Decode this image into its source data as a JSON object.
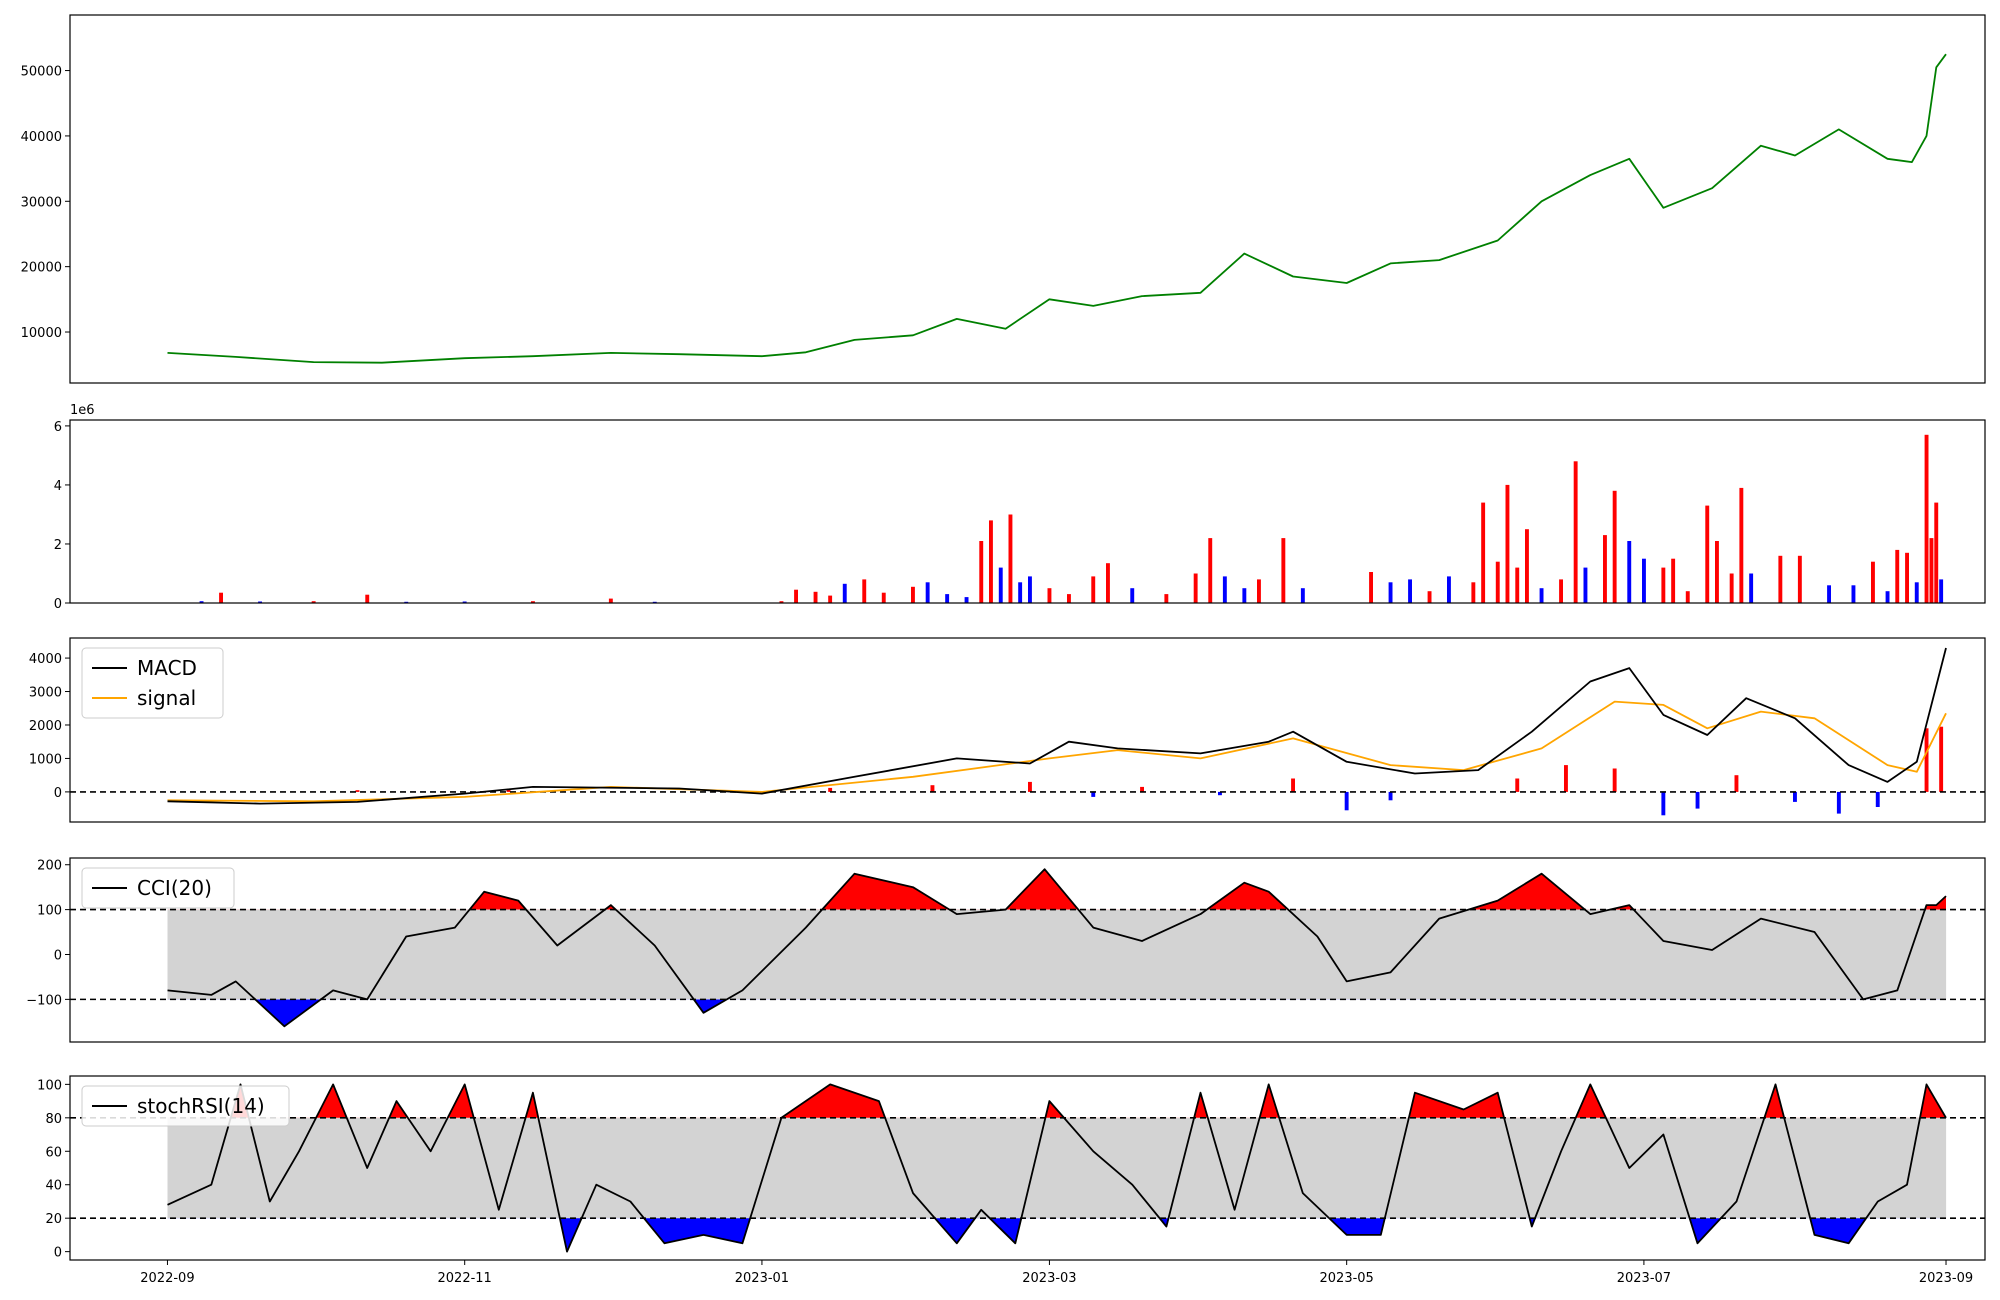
{
  "figure": {
    "x_ticks": [
      "2022-09",
      "2022-11",
      "2023-01",
      "2023-03",
      "2023-05",
      "2023-07",
      "2023-09"
    ],
    "x_range": [
      "2022-08-12",
      "2023-09-09"
    ]
  },
  "chart_data": [
    {
      "type": "line",
      "panel": "price",
      "color": "#008000",
      "ylim": [
        2200,
        58500
      ],
      "yticks": [
        10000,
        20000,
        30000,
        40000,
        50000
      ],
      "x": [
        "2022-09-01",
        "2022-09-15",
        "2022-10-01",
        "2022-10-15",
        "2022-11-01",
        "2022-11-15",
        "2022-12-01",
        "2022-12-15",
        "2023-01-01",
        "2023-01-10",
        "2023-01-20",
        "2023-02-01",
        "2023-02-10",
        "2023-02-20",
        "2023-03-01",
        "2023-03-10",
        "2023-03-20",
        "2023-04-01",
        "2023-04-10",
        "2023-04-20",
        "2023-05-01",
        "2023-05-10",
        "2023-05-20",
        "2023-06-01",
        "2023-06-10",
        "2023-06-20",
        "2023-06-28",
        "2023-07-05",
        "2023-07-15",
        "2023-07-25",
        "2023-08-01",
        "2023-08-10",
        "2023-08-20",
        "2023-08-25",
        "2023-08-28",
        "2023-08-30",
        "2023-09-01"
      ],
      "values": [
        6800,
        6200,
        5400,
        5300,
        6000,
        6300,
        6800,
        6600,
        6300,
        6900,
        8800,
        9500,
        12000,
        10500,
        15000,
        14000,
        15500,
        16000,
        22000,
        18500,
        17500,
        20500,
        21000,
        24000,
        30000,
        34000,
        36500,
        29000,
        32000,
        38500,
        37000,
        41000,
        36500,
        36000,
        40000,
        50500,
        52500
      ]
    },
    {
      "type": "bar",
      "panel": "volume",
      "scale_label": "1e6",
      "ylim": [
        0,
        6200000
      ],
      "yticks": [
        0,
        2,
        4,
        6
      ],
      "colors": {
        "up": "#ff0000",
        "down": "#0000ff"
      },
      "notes": "daily volume; red = up day, blue = down day",
      "bars": [
        [
          "2022-09-08",
          60000,
          "down"
        ],
        [
          "2022-09-12",
          350000,
          "up"
        ],
        [
          "2022-09-20",
          50000,
          "down"
        ],
        [
          "2022-10-01",
          60000,
          "up"
        ],
        [
          "2022-10-12",
          280000,
          "up"
        ],
        [
          "2022-10-20",
          40000,
          "down"
        ],
        [
          "2022-11-01",
          50000,
          "down"
        ],
        [
          "2022-11-15",
          60000,
          "up"
        ],
        [
          "2022-12-01",
          150000,
          "up"
        ],
        [
          "2022-12-10",
          40000,
          "down"
        ],
        [
          "2023-01-05",
          60000,
          "up"
        ],
        [
          "2023-01-08",
          450000,
          "up"
        ],
        [
          "2023-01-12",
          380000,
          "up"
        ],
        [
          "2023-01-15",
          250000,
          "up"
        ],
        [
          "2023-01-18",
          650000,
          "down"
        ],
        [
          "2023-01-22",
          800000,
          "up"
        ],
        [
          "2023-01-26",
          350000,
          "up"
        ],
        [
          "2023-02-01",
          550000,
          "up"
        ],
        [
          "2023-02-04",
          700000,
          "down"
        ],
        [
          "2023-02-08",
          300000,
          "down"
        ],
        [
          "2023-02-12",
          200000,
          "down"
        ],
        [
          "2023-02-15",
          2100000,
          "up"
        ],
        [
          "2023-02-17",
          2800000,
          "up"
        ],
        [
          "2023-02-19",
          1200000,
          "down"
        ],
        [
          "2023-02-21",
          3000000,
          "up"
        ],
        [
          "2023-02-23",
          700000,
          "down"
        ],
        [
          "2023-02-25",
          900000,
          "down"
        ],
        [
          "2023-03-01",
          500000,
          "up"
        ],
        [
          "2023-03-05",
          300000,
          "up"
        ],
        [
          "2023-03-10",
          900000,
          "up"
        ],
        [
          "2023-03-13",
          1350000,
          "up"
        ],
        [
          "2023-03-18",
          500000,
          "down"
        ],
        [
          "2023-03-25",
          300000,
          "up"
        ],
        [
          "2023-03-31",
          1000000,
          "up"
        ],
        [
          "2023-04-03",
          2200000,
          "up"
        ],
        [
          "2023-04-06",
          900000,
          "down"
        ],
        [
          "2023-04-10",
          500000,
          "down"
        ],
        [
          "2023-04-13",
          800000,
          "up"
        ],
        [
          "2023-04-18",
          2200000,
          "up"
        ],
        [
          "2023-04-22",
          500000,
          "down"
        ],
        [
          "2023-05-06",
          1050000,
          "up"
        ],
        [
          "2023-05-10",
          700000,
          "down"
        ],
        [
          "2023-05-14",
          800000,
          "down"
        ],
        [
          "2023-05-18",
          400000,
          "up"
        ],
        [
          "2023-05-22",
          900000,
          "down"
        ],
        [
          "2023-05-27",
          700000,
          "up"
        ],
        [
          "2023-05-29",
          3400000,
          "up"
        ],
        [
          "2023-06-01",
          1400000,
          "up"
        ],
        [
          "2023-06-03",
          4000000,
          "up"
        ],
        [
          "2023-06-05",
          1200000,
          "up"
        ],
        [
          "2023-06-07",
          2500000,
          "up"
        ],
        [
          "2023-06-10",
          500000,
          "down"
        ],
        [
          "2023-06-14",
          800000,
          "up"
        ],
        [
          "2023-06-17",
          4800000,
          "up"
        ],
        [
          "2023-06-19",
          1200000,
          "down"
        ],
        [
          "2023-06-23",
          2300000,
          "up"
        ],
        [
          "2023-06-25",
          3800000,
          "up"
        ],
        [
          "2023-06-28",
          2100000,
          "down"
        ],
        [
          "2023-07-01",
          1500000,
          "down"
        ],
        [
          "2023-07-05",
          1200000,
          "up"
        ],
        [
          "2023-07-07",
          1500000,
          "up"
        ],
        [
          "2023-07-10",
          400000,
          "up"
        ],
        [
          "2023-07-14",
          3300000,
          "up"
        ],
        [
          "2023-07-16",
          2100000,
          "up"
        ],
        [
          "2023-07-19",
          1000000,
          "up"
        ],
        [
          "2023-07-21",
          3900000,
          "up"
        ],
        [
          "2023-07-23",
          1000000,
          "down"
        ],
        [
          "2023-07-29",
          1600000,
          "up"
        ],
        [
          "2023-08-02",
          1600000,
          "up"
        ],
        [
          "2023-08-08",
          600000,
          "down"
        ],
        [
          "2023-08-13",
          600000,
          "down"
        ],
        [
          "2023-08-17",
          1400000,
          "up"
        ],
        [
          "2023-08-20",
          400000,
          "down"
        ],
        [
          "2023-08-22",
          1800000,
          "up"
        ],
        [
          "2023-08-24",
          1700000,
          "up"
        ],
        [
          "2023-08-26",
          700000,
          "down"
        ],
        [
          "2023-08-28",
          5700000,
          "up"
        ],
        [
          "2023-08-29",
          2200000,
          "up"
        ],
        [
          "2023-08-30",
          3400000,
          "up"
        ],
        [
          "2023-08-31",
          800000,
          "down"
        ]
      ]
    },
    {
      "type": "line",
      "panel": "macd",
      "ylim": [
        -900,
        4600
      ],
      "yticks": [
        0,
        1000,
        2000,
        3000,
        4000
      ],
      "hline": 0,
      "legend": {
        "placement": "top-left",
        "entries": [
          "MACD",
          "signal"
        ]
      },
      "series": [
        {
          "name": "MACD",
          "color": "#000000",
          "x": [
            "2022-09-01",
            "2022-09-20",
            "2022-10-10",
            "2022-11-01",
            "2022-11-15",
            "2022-12-15",
            "2023-01-01",
            "2023-01-20",
            "2023-02-10",
            "2023-02-25",
            "2023-03-05",
            "2023-03-15",
            "2023-04-01",
            "2023-04-15",
            "2023-04-20",
            "2023-05-01",
            "2023-05-15",
            "2023-05-28",
            "2023-06-08",
            "2023-06-20",
            "2023-06-28",
            "2023-07-05",
            "2023-07-14",
            "2023-07-22",
            "2023-08-01",
            "2023-08-12",
            "2023-08-20",
            "2023-08-26",
            "2023-09-01"
          ],
          "values": [
            -280,
            -350,
            -300,
            -50,
            150,
            100,
            -50,
            450,
            1000,
            850,
            1500,
            1300,
            1150,
            1500,
            1800,
            900,
            550,
            650,
            1800,
            3300,
            3700,
            2300,
            1700,
            2800,
            2200,
            800,
            300,
            900,
            4300
          ]
        },
        {
          "name": "signal",
          "color": "#ffa500",
          "x": [
            "2022-09-01",
            "2022-10-01",
            "2022-11-01",
            "2022-12-01",
            "2023-01-01",
            "2023-02-01",
            "2023-03-01",
            "2023-03-15",
            "2023-04-01",
            "2023-04-20",
            "2023-05-10",
            "2023-05-25",
            "2023-06-10",
            "2023-06-25",
            "2023-07-05",
            "2023-07-14",
            "2023-07-25",
            "2023-08-05",
            "2023-08-20",
            "2023-08-26",
            "2023-09-01"
          ],
          "values": [
            -250,
            -280,
            -150,
            150,
            0,
            450,
            1000,
            1250,
            1000,
            1600,
            800,
            650,
            1300,
            2700,
            2600,
            1900,
            2400,
            2200,
            800,
            600,
            2350
          ]
        }
      ],
      "histogram": {
        "colors": {
          "positive": "#ff0000",
          "negative": "#0000ff"
        },
        "x": [
          "2022-10-10",
          "2022-11-10",
          "2023-01-15",
          "2023-02-05",
          "2023-02-25",
          "2023-03-10",
          "2023-03-20",
          "2023-04-05",
          "2023-04-20",
          "2023-05-01",
          "2023-05-10",
          "2023-06-05",
          "2023-06-15",
          "2023-06-25",
          "2023-07-05",
          "2023-07-12",
          "2023-07-20",
          "2023-08-01",
          "2023-08-10",
          "2023-08-18",
          "2023-08-28",
          "2023-08-31"
        ],
        "values": [
          50,
          60,
          120,
          200,
          300,
          -150,
          150,
          -100,
          400,
          -550,
          -250,
          400,
          800,
          700,
          -700,
          -500,
          500,
          -300,
          -650,
          -450,
          1900,
          1950
        ]
      }
    },
    {
      "type": "line",
      "panel": "cci",
      "color": "#000000",
      "ylim": [
        -195,
        215
      ],
      "yticks": [
        -100,
        0,
        100,
        200
      ],
      "hlines": [
        100,
        -100
      ],
      "band": [
        -100,
        100
      ],
      "legend": {
        "placement": "top-left",
        "entries": [
          "CCI(20)"
        ]
      },
      "x": [
        "2022-09-01",
        "2022-09-10",
        "2022-09-15",
        "2022-09-25",
        "2022-10-05",
        "2022-10-12",
        "2022-10-20",
        "2022-10-30",
        "2022-11-05",
        "2022-11-12",
        "2022-11-20",
        "2022-12-01",
        "2022-12-10",
        "2022-12-20",
        "2022-12-28",
        "2023-01-10",
        "2023-01-20",
        "2023-02-01",
        "2023-02-10",
        "2023-02-20",
        "2023-02-28",
        "2023-03-10",
        "2023-03-20",
        "2023-04-01",
        "2023-04-10",
        "2023-04-15",
        "2023-04-25",
        "2023-05-01",
        "2023-05-10",
        "2023-05-20",
        "2023-06-01",
        "2023-06-10",
        "2023-06-20",
        "2023-06-28",
        "2023-07-05",
        "2023-07-15",
        "2023-07-25",
        "2023-08-05",
        "2023-08-15",
        "2023-08-22",
        "2023-08-28",
        "2023-08-30",
        "2023-09-01"
      ],
      "values": [
        -80,
        -90,
        -60,
        -160,
        -80,
        -100,
        40,
        60,
        140,
        120,
        20,
        110,
        20,
        -130,
        -80,
        60,
        180,
        150,
        90,
        100,
        190,
        60,
        30,
        90,
        160,
        140,
        40,
        -60,
        -40,
        80,
        120,
        180,
        90,
        110,
        30,
        10,
        80,
        50,
        -100,
        -80,
        110,
        110,
        130
      ]
    },
    {
      "type": "line",
      "panel": "stochrsi",
      "color": "#000000",
      "ylim": [
        -5,
        105
      ],
      "yticks": [
        0,
        20,
        40,
        60,
        80,
        100
      ],
      "hlines": [
        80,
        20
      ],
      "band": [
        20,
        80
      ],
      "legend": {
        "placement": "top-left",
        "entries": [
          "stochRSI(14)"
        ]
      },
      "x": [
        "2022-09-01",
        "2022-09-10",
        "2022-09-16",
        "2022-09-22",
        "2022-09-28",
        "2022-10-05",
        "2022-10-12",
        "2022-10-18",
        "2022-10-25",
        "2022-11-01",
        "2022-11-08",
        "2022-11-15",
        "2022-11-22",
        "2022-11-28",
        "2022-12-05",
        "2022-12-12",
        "2022-12-20",
        "2022-12-28",
        "2023-01-05",
        "2023-01-15",
        "2023-01-25",
        "2023-02-01",
        "2023-02-10",
        "2023-02-15",
        "2023-02-22",
        "2023-03-01",
        "2023-03-10",
        "2023-03-18",
        "2023-03-25",
        "2023-04-01",
        "2023-04-08",
        "2023-04-15",
        "2023-04-22",
        "2023-05-01",
        "2023-05-08",
        "2023-05-15",
        "2023-05-25",
        "2023-06-01",
        "2023-06-08",
        "2023-06-14",
        "2023-06-20",
        "2023-06-28",
        "2023-07-05",
        "2023-07-12",
        "2023-07-20",
        "2023-07-28",
        "2023-08-05",
        "2023-08-12",
        "2023-08-18",
        "2023-08-24",
        "2023-08-28",
        "2023-09-01"
      ],
      "values": [
        28,
        40,
        100,
        30,
        60,
        100,
        50,
        90,
        60,
        100,
        25,
        95,
        0,
        40,
        30,
        5,
        10,
        5,
        80,
        100,
        90,
        35,
        5,
        25,
        5,
        90,
        60,
        40,
        15,
        95,
        25,
        100,
        35,
        10,
        10,
        95,
        85,
        95,
        15,
        60,
        100,
        50,
        70,
        5,
        30,
        100,
        10,
        5,
        30,
        40,
        100,
        80
      ]
    }
  ]
}
